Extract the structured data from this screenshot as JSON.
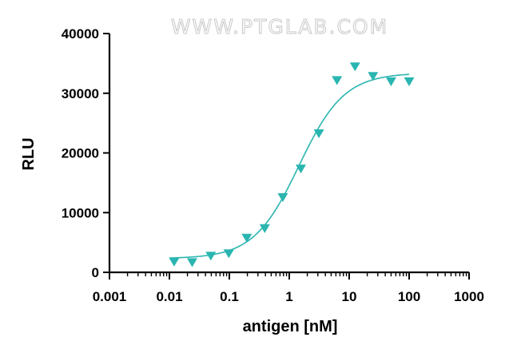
{
  "watermark": "WWW.PTGLAB.COM",
  "chart_data": {
    "type": "scatter",
    "xscale": "log",
    "xlabel": "antigen [nM]",
    "ylabel": "RLU",
    "xlim": [
      0.001,
      1000
    ],
    "ylim": [
      0,
      40000
    ],
    "xticks": [
      "0.001",
      "0.01",
      "0.1",
      "1",
      "10",
      "100",
      "1000"
    ],
    "yticks": [
      "0",
      "10000",
      "20000",
      "30000",
      "40000"
    ],
    "grid": false,
    "legend": "none",
    "color": "#2ab5b0",
    "marker": "down-triangle",
    "series": [
      {
        "x": [
          0.012,
          0.024,
          0.049,
          0.098,
          0.195,
          0.39,
          0.78,
          1.56,
          3.125,
          6.25,
          12.5,
          25,
          50,
          100
        ],
        "y": [
          1800,
          1700,
          2800,
          3200,
          5800,
          7400,
          12600,
          17400,
          23300,
          32200,
          34500,
          32900,
          32000,
          32000
        ]
      }
    ],
    "fit": {
      "model": "4PL",
      "bottom": 2300,
      "top": 33400,
      "ec50": 1.45,
      "hill": 1.15,
      "xrange": [
        0.01,
        100
      ]
    }
  }
}
